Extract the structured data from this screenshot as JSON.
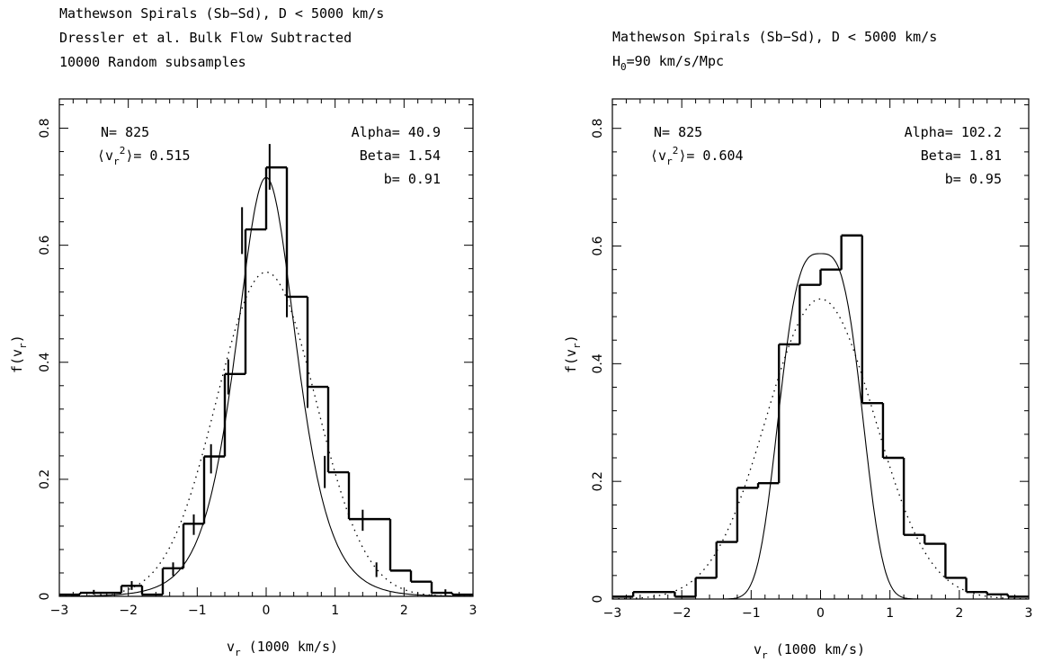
{
  "chart_data": [
    {
      "type": "bar",
      "title_lines": [
        "Mathewson Spirals (Sb−Sd), D < 5000 km/s",
        "Dressler et al. Bulk Flow Subtracted",
        "10000 Random subsamples"
      ],
      "xlabel": "v",
      "xlabel_sub": "r",
      "xlabel_unit": " (1000 km/s)",
      "ylabel": "f(v",
      "ylabel_sub": "r",
      "ylabel_end": ")",
      "xlim": [
        -3,
        3
      ],
      "ylim": [
        0,
        0.85
      ],
      "xticks": [
        "−3",
        "−2",
        "−1",
        "0",
        "1",
        "2",
        "3"
      ],
      "yticks": [
        "0",
        "0.2",
        "0.4",
        "0.6",
        "0.8"
      ],
      "annotations": {
        "n": "N=  825",
        "v2_prefix": "⟨v",
        "v2_sub": "r",
        "v2_sup": "2",
        "v2_suffix": "⟩=  0.515",
        "alpha": "Alpha= 40.9",
        "beta": "Beta=  1.54",
        "b": "b=  0.91"
      },
      "histogram_step": [
        {
          "x0": -3.0,
          "x1": -2.7,
          "y": 0.003
        },
        {
          "x0": -2.7,
          "x1": -2.1,
          "y": 0.006
        },
        {
          "x0": -2.1,
          "x1": -1.8,
          "y": 0.018
        },
        {
          "x0": -1.8,
          "x1": -1.5,
          "y": 0.003
        },
        {
          "x0": -1.5,
          "x1": -1.2,
          "y": 0.048
        },
        {
          "x0": -1.2,
          "x1": -0.9,
          "y": 0.124
        },
        {
          "x0": -0.9,
          "x1": -0.6,
          "y": 0.239
        },
        {
          "x0": -0.6,
          "x1": -0.3,
          "y": 0.38
        },
        {
          "x0": -0.3,
          "x1": 0.0,
          "y": 0.627
        },
        {
          "x0": 0.0,
          "x1": 0.3,
          "y": 0.733
        },
        {
          "x0": 0.3,
          "x1": 0.6,
          "y": 0.512
        },
        {
          "x0": 0.6,
          "x1": 0.9,
          "y": 0.358
        },
        {
          "x0": 0.9,
          "x1": 1.2,
          "y": 0.212
        },
        {
          "x0": 1.2,
          "x1": 1.8,
          "y": 0.132
        },
        {
          "x0": 1.8,
          "x1": 2.1,
          "y": 0.044
        },
        {
          "x0": 2.1,
          "x1": 2.4,
          "y": 0.025
        },
        {
          "x0": 2.4,
          "x1": 2.7,
          "y": 0.006
        },
        {
          "x0": 2.7,
          "x1": 3.0,
          "y": 0.003
        }
      ],
      "error_bars": [
        {
          "x": -2.5,
          "ylo": 0.003,
          "yhi": 0.011
        },
        {
          "x": -1.95,
          "ylo": 0.011,
          "yhi": 0.026
        },
        {
          "x": -1.35,
          "ylo": 0.035,
          "yhi": 0.058
        },
        {
          "x": -1.05,
          "ylo": 0.105,
          "yhi": 0.14
        },
        {
          "x": -0.8,
          "ylo": 0.21,
          "yhi": 0.26
        },
        {
          "x": -0.55,
          "ylo": 0.345,
          "yhi": 0.405
        },
        {
          "x": -0.35,
          "ylo": 0.585,
          "yhi": 0.665
        },
        {
          "x": 0.05,
          "ylo": 0.695,
          "yhi": 0.773
        },
        {
          "x": 0.3,
          "ylo": 0.477,
          "yhi": 0.547
        },
        {
          "x": 0.6,
          "ylo": 0.322,
          "yhi": 0.39
        },
        {
          "x": 0.85,
          "ylo": 0.185,
          "yhi": 0.24
        },
        {
          "x": 1.4,
          "ylo": 0.112,
          "yhi": 0.148
        },
        {
          "x": 1.6,
          "ylo": 0.033,
          "yhi": 0.058
        },
        {
          "x": 2.6,
          "ylo": 0.002,
          "yhi": 0.012
        }
      ],
      "model_curves": [
        {
          "style": "solid",
          "amplitude": 0.716,
          "sigma": 0.52,
          "kind": "exp-abs"
        },
        {
          "style": "dotted",
          "amplitude": 0.554,
          "sigma": 0.72,
          "kind": "gauss"
        }
      ]
    },
    {
      "type": "bar",
      "title_lines": [
        "Mathewson Spirals (Sb−Sd), D < 5000 km/s",
        "H"
      ],
      "title_sub": "0",
      "title_rest": "=90 km/s/Mpc",
      "xlabel": "v",
      "xlabel_sub": "r",
      "xlabel_unit": " (1000 km/s)",
      "ylabel": "f(v",
      "ylabel_sub": "r",
      "ylabel_end": ")",
      "xlim": [
        -3,
        3
      ],
      "ylim": [
        0,
        0.85
      ],
      "xticks": [
        "−3",
        "−2",
        "−1",
        "0",
        "1",
        "2",
        "3"
      ],
      "yticks": [
        "0",
        "0.2",
        "0.4",
        "0.6",
        "0.8"
      ],
      "annotations": {
        "n": "N=  825",
        "v2_prefix": "⟨v",
        "v2_sub": "r",
        "v2_sup": "2",
        "v2_suffix": "⟩=  0.604",
        "alpha": "Alpha= 102.2",
        "beta": "Beta=  1.81",
        "b": "b=  0.95"
      },
      "histogram_step": [
        {
          "x0": -3.0,
          "x1": -2.7,
          "y": 0.004
        },
        {
          "x0": -2.7,
          "x1": -2.1,
          "y": 0.012
        },
        {
          "x0": -2.1,
          "x1": -1.8,
          "y": 0.004
        },
        {
          "x0": -1.8,
          "x1": -1.5,
          "y": 0.036
        },
        {
          "x0": -1.5,
          "x1": -1.2,
          "y": 0.097
        },
        {
          "x0": -1.2,
          "x1": -0.9,
          "y": 0.189
        },
        {
          "x0": -0.9,
          "x1": -0.6,
          "y": 0.197
        },
        {
          "x0": -0.6,
          "x1": -0.3,
          "y": 0.433
        },
        {
          "x0": -0.3,
          "x1": 0.0,
          "y": 0.534
        },
        {
          "x0": 0.0,
          "x1": 0.3,
          "y": 0.56
        },
        {
          "x0": 0.3,
          "x1": 0.6,
          "y": 0.618
        },
        {
          "x0": 0.6,
          "x1": 0.9,
          "y": 0.333
        },
        {
          "x0": 0.9,
          "x1": 1.2,
          "y": 0.24
        },
        {
          "x0": 1.2,
          "x1": 1.5,
          "y": 0.109
        },
        {
          "x0": 1.5,
          "x1": 1.8,
          "y": 0.094
        },
        {
          "x0": 1.8,
          "x1": 2.1,
          "y": 0.036
        },
        {
          "x0": 2.1,
          "x1": 2.4,
          "y": 0.012
        },
        {
          "x0": 2.4,
          "x1": 2.7,
          "y": 0.008
        },
        {
          "x0": 2.7,
          "x1": 3.0,
          "y": 0.004
        }
      ],
      "error_bars": [],
      "model_curves": [
        {
          "style": "solid",
          "amplitude": 0.587,
          "sigma": 0.7,
          "kind": "flattop"
        },
        {
          "style": "dotted",
          "amplitude": 0.51,
          "sigma": 0.78,
          "kind": "gauss"
        }
      ]
    }
  ]
}
